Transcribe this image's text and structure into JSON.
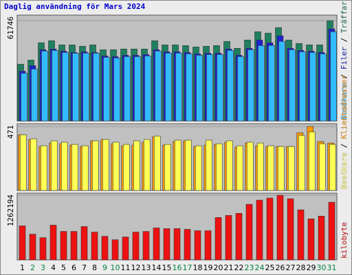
{
  "chart_data": [
    {
      "type": "bar",
      "title": "Daglig användning för Mars 2024",
      "title_color": "#0000cc",
      "ylim": [
        0,
        61746
      ],
      "yticks": [
        61746
      ],
      "legend_separator": " / ",
      "series": [
        {
          "name": "Träffar",
          "color": "#1f7f5f",
          "values": [
            34900,
            37470,
            48120,
            49400,
            46840,
            46840,
            45990,
            46840,
            43860,
            43860,
            44290,
            44290,
            44290,
            49400,
            46840,
            46840,
            46410,
            45560,
            45990,
            46410,
            48970,
            44710,
            49820,
            54930,
            54080,
            57480,
            49820,
            47690,
            46840,
            46840,
            61746
          ]
        },
        {
          "name": "Filer",
          "color": "#2020d0",
          "values": [
            30660,
            34060,
            43860,
            44280,
            43010,
            42150,
            42580,
            42150,
            40030,
            39600,
            40450,
            40450,
            40880,
            43860,
            42580,
            42580,
            42150,
            41300,
            41730,
            41730,
            44280,
            40450,
            44710,
            49820,
            48120,
            52370,
            44710,
            43430,
            43010,
            42150,
            56630
          ]
        },
        {
          "name": "Besökare",
          "color": "#33bbff",
          "values": [
            29380,
            31940,
            43010,
            43430,
            42150,
            41730,
            41730,
            41730,
            39170,
            38750,
            39600,
            39600,
            40030,
            43010,
            41730,
            41730,
            41300,
            40450,
            40880,
            40880,
            43430,
            39600,
            43860,
            46410,
            46410,
            48970,
            43860,
            42580,
            42150,
            41300,
            54930
          ]
        }
      ]
    },
    {
      "type": "bar",
      "ylim": [
        0,
        471
      ],
      "yticks": [
        471
      ],
      "legend_separator": " / ",
      "series": [
        {
          "name": "Klientadresser",
          "color": "#ff9900",
          "values": [
            410,
            375,
            324,
            349,
            344,
            334,
            324,
            365,
            375,
            344,
            329,
            334,
            355,
            395,
            334,
            360,
            365,
            324,
            334,
            339,
            355,
            319,
            349,
            329,
            324,
            324,
            324,
            425,
            471,
            360,
            349
          ]
        },
        {
          "name": "Besökare",
          "color": "#ffff55",
          "values": [
            410,
            380,
            329,
            365,
            355,
            339,
            329,
            365,
            375,
            355,
            339,
            365,
            375,
            400,
            339,
            370,
            370,
            329,
            370,
            344,
            365,
            329,
            355,
            349,
            329,
            324,
            324,
            405,
            431,
            344,
            339
          ]
        }
      ]
    },
    {
      "type": "bar",
      "ylim": [
        0,
        1262194
      ],
      "yticks": [
        1262194
      ],
      "series": [
        {
          "name": "kilobyte",
          "color": "#ee1111",
          "values": [
            665000,
            502200,
            434300,
            678600,
            556500,
            556500,
            651500,
            542900,
            461400,
            393600,
            447900,
            542900,
            556500,
            624300,
            610700,
            610700,
            597200,
            570000,
            570000,
            827900,
            868600,
            909300,
            1085800,
            1167200,
            1207900,
            1262194,
            1194300,
            977200,
            800700,
            855000,
            1126500
          ]
        }
      ],
      "categories": [
        "1",
        "2",
        "3",
        "4",
        "5",
        "6",
        "7",
        "8",
        "9",
        "10",
        "11",
        "12",
        "13",
        "14",
        "15",
        "16",
        "17",
        "18",
        "19",
        "20",
        "21",
        "22",
        "23",
        "24",
        "25",
        "26",
        "27",
        "28",
        "29",
        "30",
        "31"
      ],
      "category_colors": [
        "#000000",
        "#008040",
        "#008040",
        "#000000",
        "#000000",
        "#000000",
        "#000000",
        "#000000",
        "#008040",
        "#008040",
        "#000000",
        "#000000",
        "#000000",
        "#000000",
        "#000000",
        "#008040",
        "#008040",
        "#000000",
        "#000000",
        "#000000",
        "#000000",
        "#000000",
        "#008040",
        "#008040",
        "#000000",
        "#000000",
        "#000000",
        "#000000",
        "#000000",
        "#008040",
        "#008040"
      ]
    }
  ]
}
